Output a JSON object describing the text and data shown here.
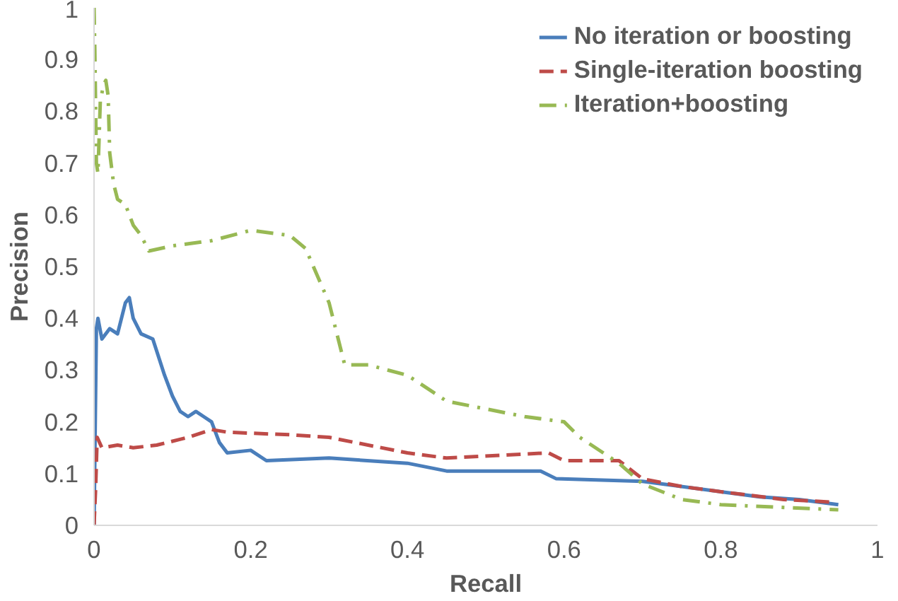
{
  "chart_data": {
    "type": "line",
    "xlabel": "Recall",
    "ylabel": "Precision",
    "xlim": [
      0,
      1
    ],
    "ylim": [
      0,
      1
    ],
    "xticks": [
      0,
      0.2,
      0.4,
      0.6,
      0.8,
      1
    ],
    "yticks": [
      0,
      0.1,
      0.2,
      0.3,
      0.4,
      0.5,
      0.6,
      0.7,
      0.8,
      0.9,
      1
    ],
    "grid": false,
    "legend": "top right",
    "series": [
      {
        "name": "No iteration or boosting",
        "color": "#4a7ebb",
        "line_style": "solid",
        "x": [
          0,
          0.003,
          0.005,
          0.01,
          0.02,
          0.03,
          0.04,
          0.045,
          0.05,
          0.06,
          0.075,
          0.09,
          0.1,
          0.11,
          0.12,
          0.13,
          0.14,
          0.15,
          0.16,
          0.17,
          0.2,
          0.22,
          0.3,
          0.4,
          0.45,
          0.57,
          0.59,
          0.7,
          0.8,
          0.85,
          0.9,
          0.95
        ],
        "values": [
          0,
          0.38,
          0.4,
          0.36,
          0.38,
          0.37,
          0.43,
          0.44,
          0.4,
          0.37,
          0.36,
          0.29,
          0.25,
          0.22,
          0.21,
          0.22,
          0.21,
          0.2,
          0.16,
          0.14,
          0.145,
          0.125,
          0.13,
          0.12,
          0.105,
          0.105,
          0.09,
          0.085,
          0.065,
          0.055,
          0.05,
          0.04
        ]
      },
      {
        "name": "Single-iteration boosting",
        "color": "#be4b48",
        "line_style": "dashed",
        "x": [
          0,
          0.002,
          0.004,
          0.01,
          0.03,
          0.05,
          0.08,
          0.12,
          0.15,
          0.17,
          0.25,
          0.3,
          0.4,
          0.45,
          0.58,
          0.6,
          0.67,
          0.7,
          0.75,
          0.8,
          0.88,
          0.94
        ],
        "values": [
          0,
          0.07,
          0.17,
          0.15,
          0.155,
          0.15,
          0.155,
          0.17,
          0.185,
          0.18,
          0.175,
          0.17,
          0.14,
          0.13,
          0.14,
          0.125,
          0.125,
          0.09,
          0.075,
          0.065,
          0.05,
          0.045
        ]
      },
      {
        "name": "Iteration+boosting",
        "color": "#98b954",
        "line_style": "dashdot",
        "x": [
          0,
          0.001,
          0.003,
          0.005,
          0.008,
          0.012,
          0.015,
          0.018,
          0.02,
          0.025,
          0.03,
          0.04,
          0.05,
          0.06,
          0.07,
          0.1,
          0.15,
          0.2,
          0.25,
          0.27,
          0.3,
          0.32,
          0.35,
          0.4,
          0.45,
          0.5,
          0.55,
          0.6,
          0.62,
          0.67,
          0.7,
          0.75,
          0.8,
          0.95
        ],
        "values": [
          1.0,
          0.92,
          0.7,
          0.68,
          0.82,
          0.85,
          0.86,
          0.83,
          0.72,
          0.66,
          0.63,
          0.62,
          0.58,
          0.56,
          0.53,
          0.54,
          0.55,
          0.57,
          0.56,
          0.535,
          0.43,
          0.31,
          0.31,
          0.29,
          0.24,
          0.225,
          0.21,
          0.2,
          0.17,
          0.12,
          0.08,
          0.05,
          0.04,
          0.03
        ]
      }
    ]
  }
}
